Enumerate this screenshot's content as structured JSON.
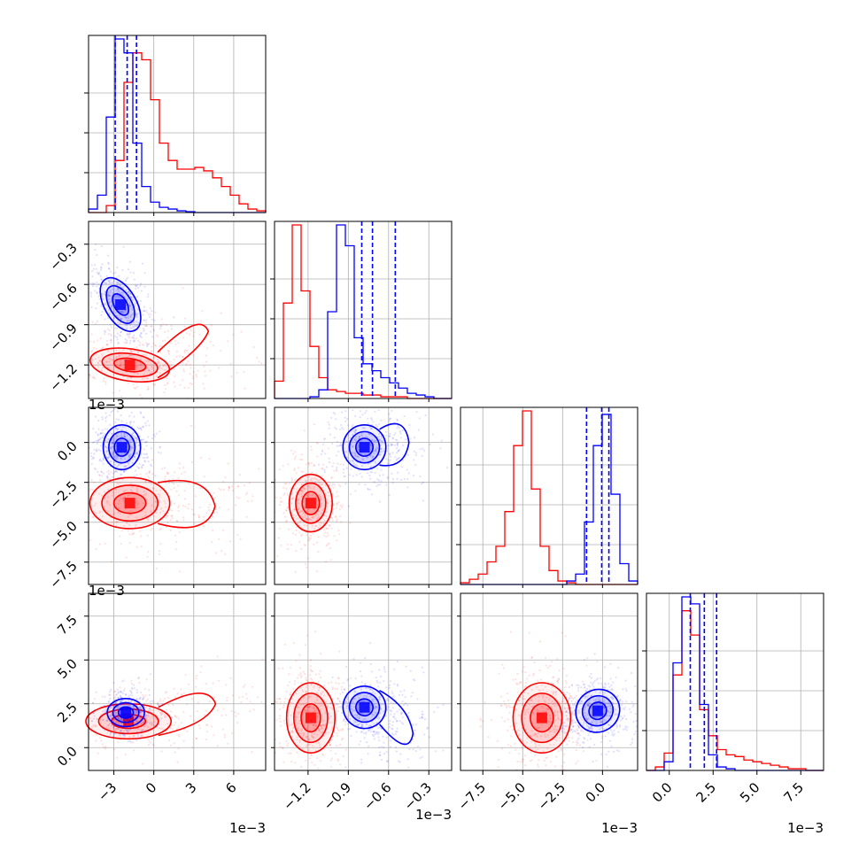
{
  "figure": {
    "type": "corner plot",
    "offset_label": "1e−3"
  },
  "colors": {
    "blue": "#0000ff",
    "red": "#ff0000",
    "grid": "#b0b0b0",
    "frame": "#000000"
  },
  "chart_data": {
    "type": "corner",
    "parameters": 4,
    "grid": true,
    "series": [
      {
        "color": "blue",
        "means": [
          -0.0021,
          -0.00075,
          -0.0002,
          0.002
        ],
        "quantile_lines": [
          [
            -0.0029,
            -0.002,
            -0.0013
          ],
          [
            -0.0008,
            -0.00072,
            -0.00055
          ],
          [
            -0.001,
            -5e-05,
            0.0004
          ],
          [
            0.0012,
            0.002,
            0.0027
          ]
        ]
      },
      {
        "color": "red",
        "means": [
          -0.0019,
          -0.0012,
          -0.0038,
          0.0016
        ]
      }
    ],
    "ranges": [
      [
        -0.0049,
        0.0084
      ],
      [
        -0.00145,
        -0.00013
      ],
      [
        -0.0089,
        0.0022
      ],
      [
        -0.0013,
        0.0088
      ]
    ],
    "ticks": [
      {
        "values": [
          -0.003,
          0.0,
          0.003,
          0.006
        ],
        "labels": [
          "−3",
          "0",
          "3",
          "6"
        ]
      },
      {
        "values": [
          -0.0012,
          -0.0009,
          -0.0006,
          -0.0003
        ],
        "labels": [
          "−1.2",
          "−0.9",
          "−0.6",
          "−0.3"
        ]
      },
      {
        "values": [
          -0.0075,
          -0.005,
          -0.0025,
          0.0
        ],
        "labels": [
          "−7.5",
          "−5.0",
          "−2.5",
          "0.0"
        ]
      },
      {
        "values": [
          0.0,
          0.0025,
          0.005,
          0.0075
        ],
        "labels": [
          "0.0",
          "2.5",
          "5.0",
          "7.5"
        ]
      }
    ],
    "diag_hist": [
      {
        "edges_start": -0.0049,
        "edges_end": 0.0084,
        "blue": [
          0.02,
          0.1,
          0.55,
          1.0,
          0.92,
          0.4,
          0.15,
          0.06,
          0.03,
          0.02,
          0.01,
          0.005,
          0,
          0,
          0,
          0,
          0,
          0,
          0,
          0
        ],
        "red": [
          0,
          0,
          0.04,
          0.3,
          0.75,
          0.92,
          0.88,
          0.65,
          0.4,
          0.3,
          0.25,
          0.25,
          0.26,
          0.24,
          0.2,
          0.15,
          0.1,
          0.05,
          0.02,
          0.01
        ]
      },
      {
        "edges_start": -0.00145,
        "edges_end": -0.00013,
        "blue": [
          0,
          0,
          0,
          0,
          0.01,
          0.05,
          0.5,
          1.0,
          0.88,
          0.35,
          0.2,
          0.16,
          0.12,
          0.09,
          0.06,
          0.03,
          0.02,
          0.01,
          0,
          0
        ],
        "red": [
          0.1,
          0.55,
          1.0,
          0.62,
          0.3,
          0.12,
          0.05,
          0.04,
          0.03,
          0.03,
          0.02,
          0.02,
          0.01,
          0.01,
          0.01,
          0,
          0,
          0,
          0,
          0
        ]
      },
      {
        "edges_start": -0.0089,
        "edges_end": 0.0022,
        "blue": [
          0,
          0,
          0,
          0,
          0,
          0,
          0,
          0,
          0,
          0,
          0,
          0,
          0.02,
          0.06,
          0.36,
          0.8,
          0.98,
          0.52,
          0.12,
          0.02
        ],
        "red": [
          0.01,
          0.03,
          0.06,
          0.13,
          0.22,
          0.42,
          0.8,
          1.0,
          0.55,
          0.22,
          0.08,
          0.02,
          0.01,
          0,
          0,
          0,
          0,
          0,
          0,
          0
        ]
      },
      {
        "edges_start": -0.0013,
        "edges_end": 0.0088,
        "blue": [
          0,
          0,
          0.05,
          0.62,
          1.0,
          0.96,
          0.38,
          0.09,
          0.02,
          0.01,
          0,
          0,
          0,
          0,
          0,
          0,
          0,
          0,
          0,
          0
        ],
        "red": [
          0,
          0.02,
          0.1,
          0.55,
          0.92,
          0.78,
          0.35,
          0.2,
          0.12,
          0.09,
          0.08,
          0.06,
          0.05,
          0.04,
          0.03,
          0.02,
          0.01,
          0.01,
          0,
          0
        ]
      }
    ],
    "pair_panels": [
      {
        "row": 1,
        "col": 0,
        "blue": {
          "center": [
            -0.0025,
            -0.00075
          ],
          "sd": [
            0.0006,
            0.00011
          ],
          "rot": -30
        },
        "red": {
          "center": [
            -0.0018,
            -0.0012
          ],
          "sd": [
            0.0015,
            6e-05
          ],
          "rot": 8,
          "tail": [
            0.0035,
            -0.00095
          ]
        }
      },
      {
        "row": 2,
        "col": 0,
        "blue": {
          "center": [
            -0.0024,
            -0.0003
          ],
          "sd": [
            0.0007,
            0.0007
          ],
          "rot": 0
        },
        "red": {
          "center": [
            -0.0018,
            -0.0038
          ],
          "sd": [
            0.0015,
            0.0008
          ],
          "rot": 0,
          "tail": [
            0.004,
            -0.004
          ]
        }
      },
      {
        "row": 3,
        "col": 0,
        "blue": {
          "center": [
            -0.0021,
            0.002
          ],
          "sd": [
            0.0007,
            0.0004
          ],
          "rot": 0
        },
        "red": {
          "center": [
            -0.0019,
            0.0015
          ],
          "sd": [
            0.0016,
            0.0005
          ],
          "rot": 0,
          "tail": [
            0.004,
            0.0025
          ]
        }
      },
      {
        "row": 2,
        "col": 1,
        "blue": {
          "center": [
            -0.00078,
            -0.0003
          ],
          "sd": [
            8e-05,
            0.0007
          ],
          "rot": 0,
          "tail": [
            -0.00048,
            0.0
          ]
        },
        "red": {
          "center": [
            -0.00118,
            -0.0038
          ],
          "sd": [
            8e-05,
            0.0009
          ],
          "rot": 0
        }
      },
      {
        "row": 3,
        "col": 1,
        "blue": {
          "center": [
            -0.00078,
            0.0023
          ],
          "sd": [
            8e-05,
            0.0006
          ],
          "rot": 25,
          "tail": [
            -0.00045,
            0.0008
          ]
        },
        "red": {
          "center": [
            -0.00118,
            0.0017
          ],
          "sd": [
            9e-05,
            0.001
          ],
          "rot": 0
        }
      },
      {
        "row": 3,
        "col": 2,
        "blue": {
          "center": [
            -0.0003,
            0.0021
          ],
          "sd": [
            0.0007,
            0.0006
          ],
          "rot": -35
        },
        "red": {
          "center": [
            -0.0038,
            0.0017
          ],
          "sd": [
            0.0009,
            0.001
          ],
          "rot": 0
        }
      }
    ]
  }
}
